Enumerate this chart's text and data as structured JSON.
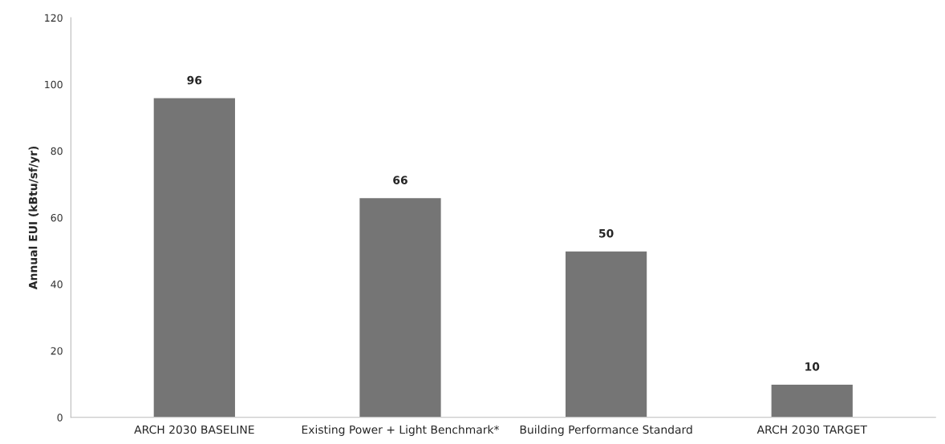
{
  "chart_data": {
    "type": "bar",
    "ylabel": "Annual EUI (kBtu/sf/yr)",
    "categories": [
      "ARCH 2030 BASELINE",
      "Existing Power + Light Benchmark*",
      "Building Performance Standard",
      "ARCH 2030 TARGET"
    ],
    "values": [
      96,
      66,
      50,
      10
    ],
    "color": "#757575",
    "data_labels": true,
    "ylim": [
      0,
      120
    ],
    "yticks": [
      0,
      20,
      40,
      60,
      80,
      100,
      120
    ],
    "grid": false,
    "legend": false
  }
}
